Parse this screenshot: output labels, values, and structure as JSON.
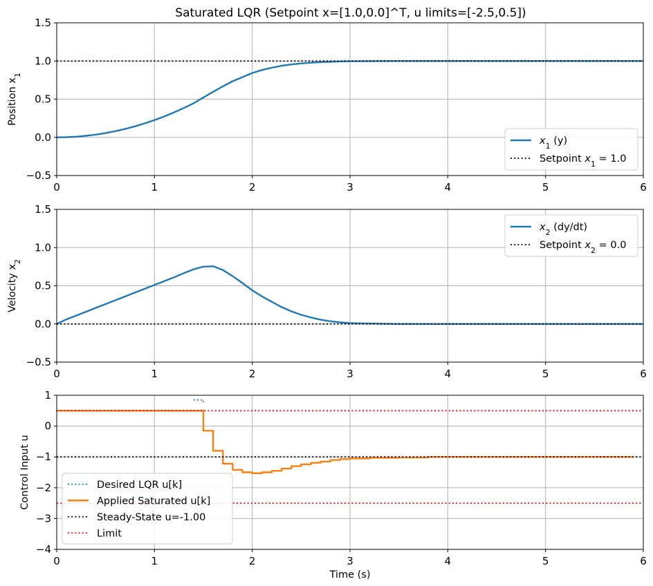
{
  "figure": {
    "title": "Saturated LQR (Setpoint x=[1.0,0.0]^T, u limits=[-2.5,0.5])",
    "colors": {
      "state": "#1f77b4",
      "applied": "#ff7f0e",
      "setpoint": "#000000",
      "limit": "#ff0000",
      "grid": "#b0b0b0"
    }
  },
  "chart_data": [
    {
      "type": "line",
      "title": "Saturated LQR (Setpoint x=[1.0,0.0]^T, u limits=[-2.5,0.5])",
      "xlabel": "",
      "ylabel": "Position x",
      "ylabel_sub": "1",
      "xlim": [
        0,
        6
      ],
      "ylim": [
        -0.5,
        1.5
      ],
      "xticks": [
        0,
        1,
        2,
        3,
        4,
        5,
        6
      ],
      "yticks": [
        -0.5,
        0.0,
        0.5,
        1.0,
        1.5
      ],
      "ytick_labels": [
        "−0.5",
        "0.0",
        "0.5",
        "1.0",
        "1.5"
      ],
      "grid": true,
      "legend_position": "lower-right",
      "series": [
        {
          "name": "x1 (y)",
          "legend": {
            "pre": "x",
            "sub": "1",
            "post": " (y)"
          },
          "style": "solid",
          "color": "#1f77b4",
          "x": [
            0,
            0.1,
            0.2,
            0.3,
            0.4,
            0.5,
            0.6,
            0.7,
            0.8,
            0.9,
            1.0,
            1.1,
            1.2,
            1.3,
            1.4,
            1.5,
            1.6,
            1.7,
            1.8,
            1.9,
            2.0,
            2.1,
            2.2,
            2.3,
            2.4,
            2.5,
            2.6,
            2.7,
            2.8,
            2.9,
            3.0,
            3.5,
            4.0,
            5.0,
            6.0
          ],
          "y": [
            0,
            0.002,
            0.009,
            0.02,
            0.036,
            0.056,
            0.081,
            0.11,
            0.144,
            0.183,
            0.226,
            0.274,
            0.327,
            0.384,
            0.447,
            0.522,
            0.597,
            0.668,
            0.735,
            0.789,
            0.843,
            0.882,
            0.912,
            0.937,
            0.955,
            0.968,
            0.978,
            0.985,
            0.99,
            0.994,
            0.997,
            1.0,
            1.0,
            1.0,
            1.0
          ]
        },
        {
          "name": "Setpoint x1=1.0",
          "legend": {
            "pre": "Setpoint x",
            "sub": "1",
            "post": " = 1.0"
          },
          "style": "dotted",
          "color": "#000000",
          "x": [
            0,
            6
          ],
          "y": [
            1.0,
            1.0
          ]
        }
      ]
    },
    {
      "type": "line",
      "xlabel": "",
      "ylabel": "Velocity x",
      "ylabel_sub": "2",
      "xlim": [
        0,
        6
      ],
      "ylim": [
        -0.5,
        1.5
      ],
      "xticks": [
        0,
        1,
        2,
        3,
        4,
        5,
        6
      ],
      "yticks": [
        -0.5,
        0.0,
        0.5,
        1.0,
        1.5
      ],
      "ytick_labels": [
        "−0.5",
        "0.0",
        "0.5",
        "1.0",
        "1.5"
      ],
      "grid": true,
      "legend_position": "upper-right",
      "series": [
        {
          "name": "x2 (dy/dt)",
          "legend": {
            "pre": "x",
            "sub": "2",
            "post": " (dy/dt)"
          },
          "style": "solid",
          "color": "#1f77b4",
          "x": [
            0,
            0.1,
            0.2,
            0.3,
            0.4,
            0.5,
            0.6,
            0.7,
            0.8,
            0.9,
            1.0,
            1.1,
            1.2,
            1.3,
            1.4,
            1.5,
            1.6,
            1.7,
            1.8,
            1.9,
            2.0,
            2.1,
            2.2,
            2.3,
            2.4,
            2.5,
            2.6,
            2.7,
            2.8,
            2.9,
            3.0,
            3.2,
            3.5,
            4.0,
            5.0,
            6.0
          ],
          "y": [
            0,
            0.06,
            0.11,
            0.16,
            0.21,
            0.26,
            0.31,
            0.36,
            0.41,
            0.46,
            0.51,
            0.56,
            0.61,
            0.665,
            0.715,
            0.75,
            0.755,
            0.705,
            0.625,
            0.535,
            0.44,
            0.36,
            0.29,
            0.22,
            0.165,
            0.12,
            0.085,
            0.055,
            0.035,
            0.02,
            0.01,
            0.005,
            0.0,
            0.0,
            0.0,
            0.0
          ]
        },
        {
          "name": "Setpoint x2=0.0",
          "legend": {
            "pre": "Setpoint x",
            "sub": "2",
            "post": " = 0.0"
          },
          "style": "dotted",
          "color": "#000000",
          "x": [
            0,
            6
          ],
          "y": [
            0.0,
            0.0
          ]
        }
      ]
    },
    {
      "type": "line",
      "xlabel": "Time (s)",
      "ylabel": "Control Input u",
      "xlim": [
        0,
        6
      ],
      "ylim": [
        -4,
        1
      ],
      "xticks": [
        0,
        1,
        2,
        3,
        4,
        5,
        6
      ],
      "yticks": [
        -4,
        -3,
        -2,
        -1,
        0,
        1
      ],
      "ytick_labels": [
        "−4",
        "−3",
        "−2",
        "−1",
        "0",
        "1"
      ],
      "grid": true,
      "legend_position": "lower-left",
      "series": [
        {
          "name": "Desired LQR u[k]",
          "legend": {
            "pre": "Desired LQR u[k]",
            "sub": "",
            "post": ""
          },
          "style": "dotted",
          "step": true,
          "color": "#1f77b4",
          "x": [
            1.4,
            1.5
          ],
          "y": [
            0.85,
            0.75
          ]
        },
        {
          "name": "Applied Saturated u[k]",
          "legend": {
            "pre": "Applied Saturated u[k]",
            "sub": "",
            "post": ""
          },
          "style": "solid",
          "step": true,
          "color": "#ff7f0e",
          "x": [
            0,
            1.5,
            1.6,
            1.7,
            1.8,
            1.9,
            2.0,
            2.1,
            2.2,
            2.3,
            2.4,
            2.5,
            2.6,
            2.7,
            2.8,
            2.9,
            3.0,
            3.2,
            3.5,
            3.8,
            4.0,
            5.0,
            5.9
          ],
          "y": [
            0.5,
            -0.15,
            -0.8,
            -1.22,
            -1.42,
            -1.5,
            -1.53,
            -1.5,
            -1.45,
            -1.38,
            -1.3,
            -1.24,
            -1.19,
            -1.15,
            -1.1,
            -1.07,
            -1.05,
            -1.03,
            -1.02,
            -1.0,
            -1.0,
            -1.0,
            -1.0
          ]
        },
        {
          "name": "Steady-State u=-1.00",
          "legend": {
            "pre": "Steady-State u=-1.00",
            "sub": "",
            "post": ""
          },
          "style": "dotted",
          "color": "#000000",
          "x": [
            0,
            6
          ],
          "y": [
            -1.0,
            -1.0
          ]
        },
        {
          "name": "Limit",
          "legend": {
            "pre": "Limit",
            "sub": "",
            "post": ""
          },
          "style": "dotted",
          "color": "#ff0000",
          "x": [
            0,
            6
          ],
          "y": [
            0.5,
            0.5
          ]
        },
        {
          "name": "",
          "style": "dotted",
          "color": "#ff0000",
          "x": [
            0,
            6
          ],
          "y": [
            -2.5,
            -2.5
          ]
        }
      ]
    }
  ]
}
